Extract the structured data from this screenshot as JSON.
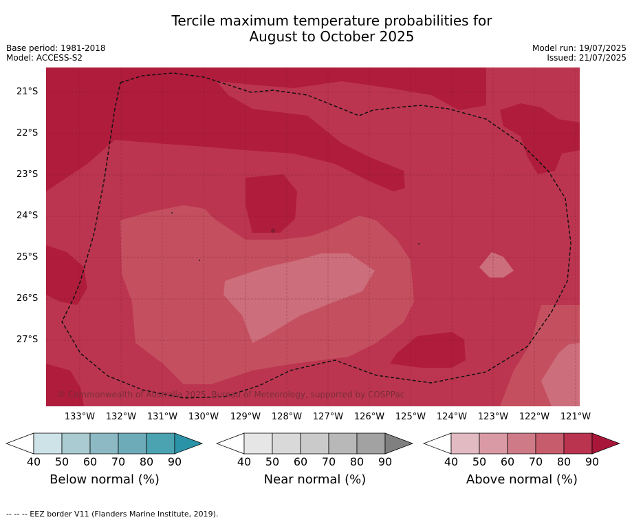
{
  "title_line1": "Tercile maximum temperature probabilities for",
  "title_line2": "August to October 2025",
  "meta_left": {
    "line1": "Base period: 1981-2018",
    "line2": "Model: ACCESS-S2"
  },
  "meta_right": {
    "line1": "Model run: 19/07/2025",
    "line2": "Issued: 21/07/2025"
  },
  "lat_labels": [
    "21°S",
    "22°S",
    "23°S",
    "24°S",
    "25°S",
    "26°S",
    "27°S"
  ],
  "lon_labels": [
    "133°W",
    "132°W",
    "131°W",
    "130°W",
    "129°W",
    "128°W",
    "127°W",
    "126°W",
    "125°W",
    "124°W",
    "123°W",
    "122°W",
    "121°W"
  ],
  "copyright": "© Commonwealth of Australia 2025, Bureau of Meteorology, supported by COSPPac",
  "colorbars": [
    {
      "label": "Below normal (%)",
      "ticks": [
        "40",
        "50",
        "60",
        "70",
        "80",
        "90"
      ],
      "colors": [
        "#cde3e8",
        "#a9cbd1",
        "#8cb9c3",
        "#6eabb8",
        "#4ba2b1",
        "#2a93a8"
      ]
    },
    {
      "label": "Near normal (%)",
      "ticks": [
        "40",
        "50",
        "60",
        "70",
        "80",
        "90"
      ],
      "colors": [
        "#e6e6e6",
        "#d9d9d9",
        "#cacaca",
        "#b8b8b8",
        "#a2a2a2",
        "#808080"
      ]
    },
    {
      "label": "Above normal (%)",
      "ticks": [
        "40",
        "50",
        "60",
        "70",
        "80",
        "90"
      ],
      "colors": [
        "#e2bac2",
        "#d99aa5",
        "#cf7b87",
        "#c65c6c",
        "#ba3450",
        "#a8163a"
      ]
    }
  ],
  "footnote": "--  --  -- EEZ border V11 (Flanders Marine Institute, 2019).",
  "map_colors": {
    "c90": "#b01c3c",
    "c80": "#bc3550",
    "c70": "#c4505f",
    "c60": "#cc6e7c"
  }
}
